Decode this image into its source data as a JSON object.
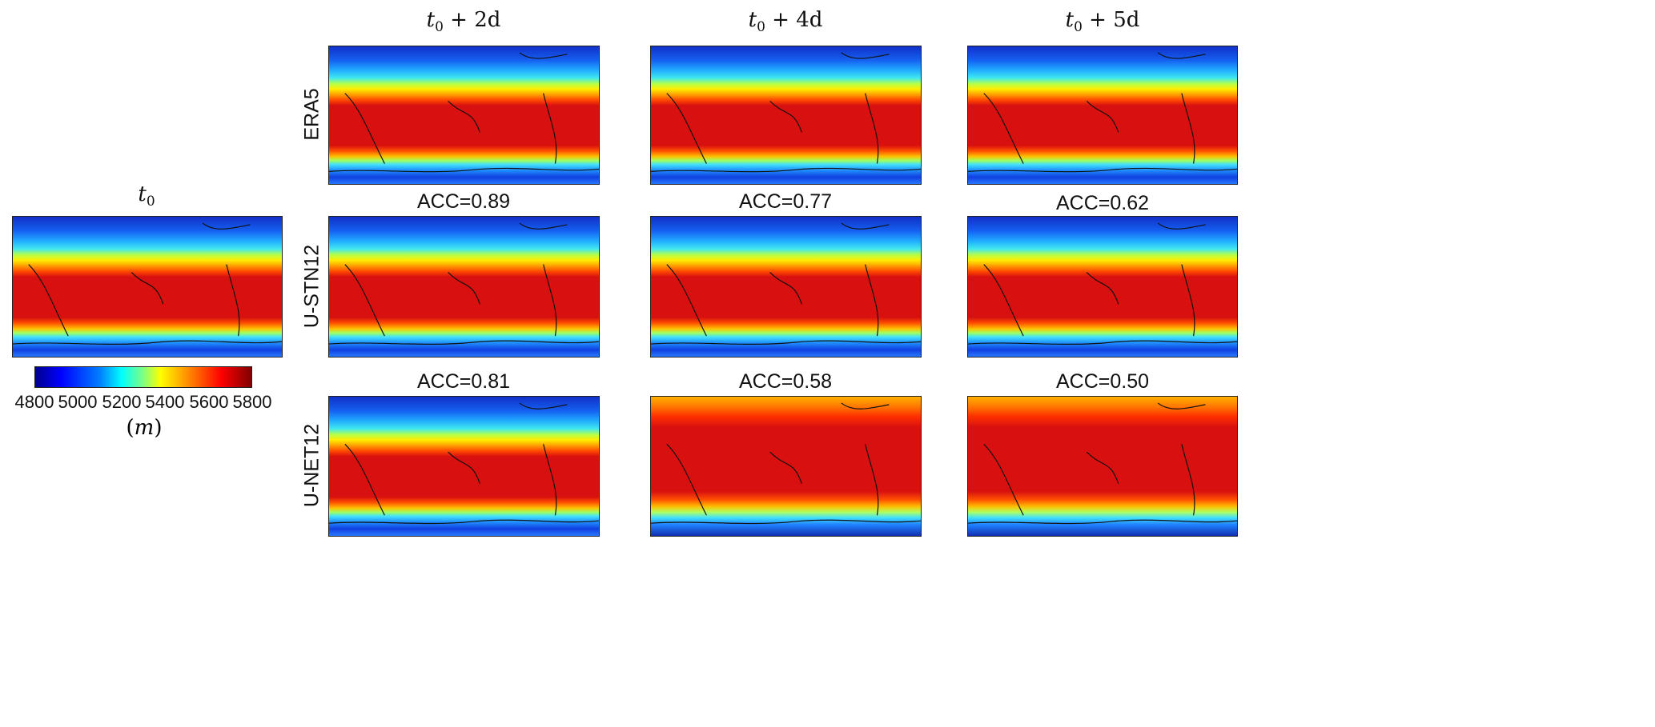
{
  "column_headers": [
    {
      "base": "t",
      "sub": "0",
      "rest": ""
    },
    {
      "base": "t",
      "sub": "0",
      "rest": " + 2d"
    },
    {
      "base": "t",
      "sub": "0",
      "rest": " + 4d"
    },
    {
      "base": "t",
      "sub": "0",
      "rest": " + 5d"
    }
  ],
  "row_labels": [
    "ERA5",
    "U-STN12",
    "U-NET12"
  ],
  "acc": {
    "u_stn12": [
      "ACC=0.89",
      "ACC=0.77",
      "ACC=0.62"
    ],
    "u_net12": [
      "ACC=0.81",
      "ACC=0.58",
      "ACC=0.50"
    ]
  },
  "colorbar": {
    "colormap": "jet",
    "range": [
      4800,
      5800
    ],
    "ticks": [
      "4800",
      "5000",
      "5200",
      "5400",
      "5600",
      "5800"
    ],
    "unit": "m"
  },
  "colors": {
    "low": "#0000a0",
    "mid": "#ffff00",
    "high": "#d81010"
  }
}
